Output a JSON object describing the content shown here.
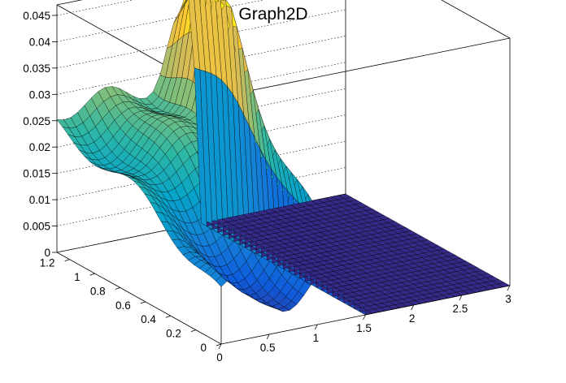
{
  "chart_data": {
    "type": "surface",
    "title": "Graph2D",
    "x_ticks": [
      "0",
      "0.5",
      "1",
      "1.5",
      "2",
      "2.5",
      "3"
    ],
    "y_ticks": [
      "0",
      "0.2",
      "0.4",
      "0.6",
      "0.8",
      "1",
      "1.2"
    ],
    "z_ticks": [
      "0",
      "0.005",
      "0.01",
      "0.015",
      "0.02",
      "0.025",
      "0.03",
      "0.035",
      "0.04",
      "0.045"
    ],
    "xlim": [
      0,
      3
    ],
    "ylim": [
      0,
      1.3
    ],
    "zlim": [
      0,
      0.047
    ],
    "grid": true,
    "colormap": [
      "#352a87",
      "#0f5cdd",
      "#1481d6",
      "#06a4ca",
      "#2eb7a4",
      "#87bf77",
      "#d1bb59",
      "#fec832",
      "#f9fb0e"
    ],
    "mesh_color": "#000000"
  }
}
